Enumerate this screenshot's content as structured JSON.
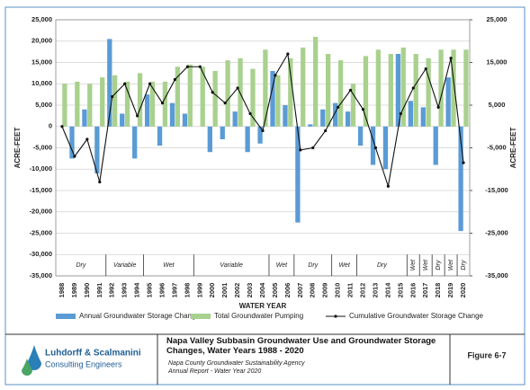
{
  "chart_data": {
    "type": "bar",
    "categories": [
      "1988",
      "1989",
      "1990",
      "1991",
      "1992",
      "1993",
      "1994",
      "1995",
      "1996",
      "1997",
      "1998",
      "1999",
      "2000",
      "2001",
      "2002",
      "2003",
      "2004",
      "2005",
      "2006",
      "2007",
      "2008",
      "2009",
      "2010",
      "2011",
      "2012",
      "2013",
      "2014",
      "2015",
      "2016",
      "2017",
      "2018",
      "2019",
      "2020"
    ],
    "x_label": "WATER YEAR",
    "y_label": "ACRE-FEET",
    "y2_label": "ACRE-FEET",
    "series": [
      {
        "name": "Annual Groundwater Storage Change",
        "type": "bar",
        "color": "#5b9bd5",
        "values": [
          0,
          -7500,
          4000,
          -11000,
          20500,
          3000,
          -7500,
          7500,
          -4500,
          5500,
          3000,
          0,
          -6000,
          -3000,
          3500,
          -6000,
          -4000,
          13000,
          5000,
          -22500,
          500,
          4000,
          5500,
          3500,
          -4500,
          -9000,
          -10000,
          17000,
          6000,
          4500,
          -9000,
          11500,
          -24500
        ]
      },
      {
        "name": "Total Groundwater Pumping",
        "type": "bar",
        "color": "#a9d18e",
        "values": [
          10000,
          10500,
          10000,
          11500,
          12000,
          10500,
          12500,
          10500,
          10500,
          14000,
          14500,
          14000,
          13000,
          15500,
          16000,
          13500,
          18000,
          12000,
          16000,
          18500,
          21000,
          17000,
          15500,
          10000,
          16500,
          18000,
          17000,
          18500,
          17000,
          16000,
          18000,
          18000,
          18000
        ]
      },
      {
        "name": "Cumulative Groundwater Storage Change",
        "type": "line",
        "color": "#111111",
        "values": [
          0,
          -7000,
          -3000,
          -13000,
          7000,
          10000,
          2500,
          10000,
          5500,
          11000,
          14000,
          14000,
          8000,
          5500,
          9000,
          3000,
          -1000,
          12000,
          17000,
          -5500,
          -5000,
          -1000,
          4500,
          8500,
          4000,
          -5000,
          -14000,
          3000,
          9000,
          13500,
          4500,
          16000,
          -8500
        ]
      }
    ],
    "ylim": [
      -35000,
      25000
    ],
    "yticks": [
      {
        "value": -35000,
        "label": "-35,000"
      },
      {
        "value": -30000,
        "label": "-30,000"
      },
      {
        "value": -25000,
        "label": "-25,000"
      },
      {
        "value": -20000,
        "label": "-20,000"
      },
      {
        "value": -15000,
        "label": "-15,000"
      },
      {
        "value": -10000,
        "label": "-10,000"
      },
      {
        "value": -5000,
        "label": "-5,000"
      },
      0,
      {
        "value": 5000,
        "label": "5,000"
      },
      {
        "value": 10000,
        "label": "10,000"
      },
      {
        "value": 15000,
        "label": "15,000"
      },
      {
        "value": 20000,
        "label": "20,000"
      },
      {
        "value": 25000,
        "label": "25,000"
      }
    ],
    "y2lim": [
      -35000,
      25000
    ],
    "y2ticks": [
      {
        "value": -35000,
        "label": "-35,000"
      },
      {
        "value": -25000,
        "label": "-25,000"
      },
      {
        "value": -15000,
        "label": "-15,000"
      },
      {
        "value": -5000,
        "label": "-5,000"
      },
      {
        "value": 5000,
        "label": "5,000"
      },
      {
        "value": 15000,
        "label": "15,000"
      },
      {
        "value": 25000,
        "label": "25,000"
      }
    ],
    "grid": true,
    "year_types": [
      {
        "label": "Dry",
        "start": "1988",
        "end": "1991"
      },
      {
        "label": "Variable",
        "start": "1992",
        "end": "1994"
      },
      {
        "label": "Wet",
        "start": "1995",
        "end": "1998"
      },
      {
        "label": "Variable",
        "start": "1999",
        "end": "2004"
      },
      {
        "label": "Wet",
        "start": "2005",
        "end": "2006"
      },
      {
        "label": "Dry",
        "start": "2007",
        "end": "2009"
      },
      {
        "label": "Wet",
        "start": "2010",
        "end": "2011"
      },
      {
        "label": "Dry",
        "start": "2012",
        "end": "2015"
      },
      {
        "label": "Wet",
        "start": "2016",
        "end": "2016"
      },
      {
        "label": "Wet",
        "start": "2017",
        "end": "2017"
      },
      {
        "label": "Dry",
        "start": "2018",
        "end": "2018"
      },
      {
        "label": "Wet",
        "start": "2019",
        "end": "2019"
      },
      {
        "label": "Dry",
        "start": "2020",
        "end": "2020"
      }
    ]
  },
  "footer": {
    "company_name": "Luhdorff & Scalmanini",
    "company_sub": "Consulting Engineers",
    "title": "Napa Valley Subbasin Groundwater Use and Groundwater Storage Changes, Water Years 1988 - 2020",
    "agency": "Napa County Groundwater Sustainability Agency",
    "report": "Annual Report - Water Year 2020",
    "figure": "Figure 6-7"
  }
}
